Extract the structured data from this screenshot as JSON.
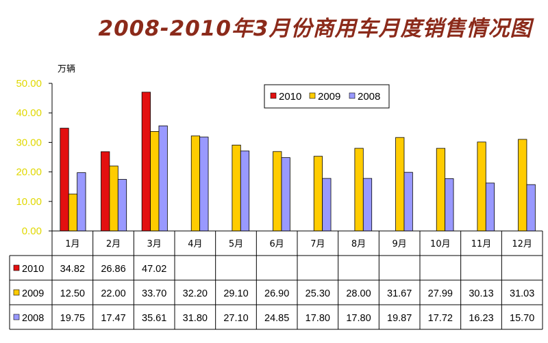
{
  "title": "2008-2010年3月份商用车月度销售情况图",
  "chart_data": {
    "type": "bar",
    "title": "2008-2010年3月份商用车月度销售情况图",
    "unit_label": "万辆",
    "ylim": [
      0,
      50
    ],
    "y_ticks": [
      "0.00",
      "10.00",
      "20.00",
      "30.00",
      "40.00",
      "50.00"
    ],
    "categories": [
      "1月",
      "2月",
      "3月",
      "4月",
      "5月",
      "6月",
      "7月",
      "8月",
      "9月",
      "10月",
      "11月",
      "12月"
    ],
    "series": [
      {
        "name": "2010",
        "color": "#e31010",
        "values": [
          34.82,
          26.86,
          47.02,
          null,
          null,
          null,
          null,
          null,
          null,
          null,
          null,
          null
        ],
        "labels": [
          "34.82",
          "26.86",
          "47.02",
          "",
          "",
          "",
          "",
          "",
          "",
          "",
          "",
          ""
        ]
      },
      {
        "name": "2009",
        "color": "#ffcc00",
        "values": [
          12.5,
          22.0,
          33.7,
          32.2,
          29.1,
          26.9,
          25.3,
          28.0,
          31.67,
          27.99,
          30.13,
          31.03
        ],
        "labels": [
          "12.50",
          "22.00",
          "33.70",
          "32.20",
          "29.10",
          "26.90",
          "25.30",
          "28.00",
          "31.67",
          "27.99",
          "30.13",
          "31.03"
        ]
      },
      {
        "name": "2008",
        "color": "#9999ff",
        "values": [
          19.75,
          17.47,
          35.61,
          31.8,
          27.1,
          24.85,
          17.8,
          17.8,
          19.87,
          17.72,
          16.23,
          15.7
        ],
        "labels": [
          "19.75",
          "17.47",
          "35.61",
          "31.80",
          "27.10",
          "24.85",
          "17.80",
          "17.80",
          "19.87",
          "17.72",
          "16.23",
          "15.70"
        ]
      }
    ],
    "legend_position": "top-right",
    "grid": false,
    "data_table": true
  }
}
